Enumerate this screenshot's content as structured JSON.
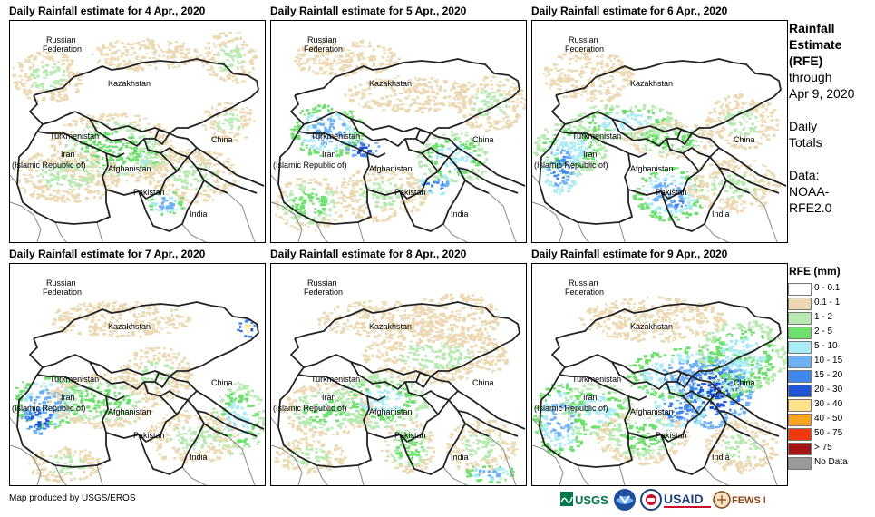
{
  "panels": [
    {
      "title": "Daily Rainfall estimate for 4 Apr., 2020"
    },
    {
      "title": "Daily Rainfall estimate for 5 Apr., 2020"
    },
    {
      "title": "Daily Rainfall estimate for 6 Apr., 2020"
    },
    {
      "title": "Daily Rainfall estimate for 7 Apr., 2020"
    },
    {
      "title": "Daily Rainfall estimate for 8 Apr., 2020"
    },
    {
      "title": "Daily Rainfall estimate for 9 Apr., 2020"
    }
  ],
  "map_labels": {
    "russia_1": "Russian",
    "russia_2": "Federation",
    "kazakhstan": "Kazakhstan",
    "turkmenistan": "Turkmenistan",
    "iran_1": "Iran",
    "iran_2": "(Islamic Republic of)",
    "afghanistan": "Afghanistan",
    "pakistan": "Pakistan",
    "china": "China",
    "india": "India"
  },
  "side_info": {
    "title_1": "Rainfall",
    "title_2": "Estimate",
    "title_3": "(RFE)",
    "through": "through",
    "date": "Apr 9, 2020",
    "totals_1": "Daily",
    "totals_2": "Totals",
    "data_1": "Data:",
    "data_2": "NOAA-",
    "data_3": "RFE2.0"
  },
  "legend": {
    "title": "RFE (mm)",
    "items": [
      {
        "label": "0 - 0.1",
        "color": "#ffffff"
      },
      {
        "label": "0.1 - 1",
        "color": "#ecd9b4"
      },
      {
        "label": "1 - 2",
        "color": "#b7eab0"
      },
      {
        "label": "2 - 5",
        "color": "#6ee06e"
      },
      {
        "label": "5 - 10",
        "color": "#a9ecf5"
      },
      {
        "label": "10 - 15",
        "color": "#6fb1f5"
      },
      {
        "label": "15 - 20",
        "color": "#3f86ee"
      },
      {
        "label": "20 - 30",
        "color": "#1f55d6"
      },
      {
        "label": "30 - 40",
        "color": "#ffe28a"
      },
      {
        "label": "40 - 50",
        "color": "#f6a51d"
      },
      {
        "label": "50 - 75",
        "color": "#ee3a0e"
      },
      {
        "label": "> 75",
        "color": "#a31515"
      },
      {
        "label": "No Data",
        "color": "#999999"
      }
    ]
  },
  "footer": "Map produced by USGS/EROS",
  "logos": {
    "usgs": "USGS",
    "usaid": "USAID",
    "fewsnet": "FEWS NET"
  },
  "colors": {
    "border": "#000000",
    "country_line": "#222222",
    "grey_line": "#888888"
  }
}
